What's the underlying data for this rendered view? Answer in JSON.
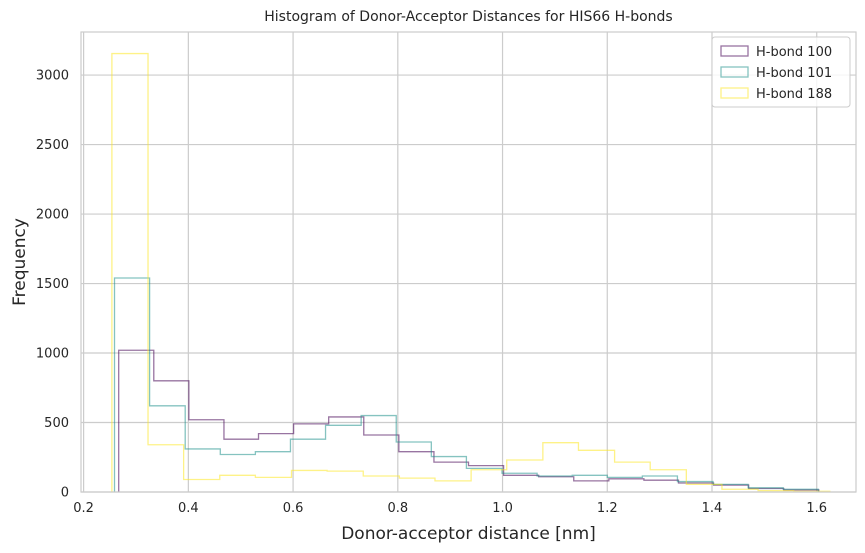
{
  "chart_data": {
    "type": "histogram",
    "title": "Histogram of Donor-Acceptor Distances for HIS66 H-bonds",
    "xlabel": "Donor-acceptor distance [nm]",
    "ylabel": "Frequency",
    "xlim": [
      0.195,
      1.675
    ],
    "ylim": [
      0,
      3310
    ],
    "xticks": [
      0.2,
      0.4,
      0.6,
      0.8,
      1.0,
      1.2,
      1.4,
      1.6
    ],
    "xtick_labels": [
      "0.2",
      "0.4",
      "0.6",
      "0.8",
      "1.0",
      "1.2",
      "1.4",
      "1.6"
    ],
    "yticks": [
      0,
      500,
      1000,
      1500,
      2000,
      2500,
      3000
    ],
    "ytick_labels": [
      "0",
      "500",
      "1000",
      "1500",
      "2000",
      "2500",
      "3000"
    ],
    "grid": true,
    "histtype": "step",
    "legend_position": "top-right",
    "series": [
      {
        "name": "H-bond 100",
        "color": "#440154",
        "edges": [
          0.267,
          0.334,
          0.401,
          0.468,
          0.534,
          0.601,
          0.668,
          0.735,
          0.802,
          0.869,
          0.935,
          1.002,
          1.069,
          1.136,
          1.203,
          1.27,
          1.336,
          1.403,
          1.47,
          1.537,
          1.604
        ],
        "counts": [
          1020,
          800,
          520,
          380,
          420,
          490,
          540,
          410,
          290,
          215,
          190,
          120,
          110,
          80,
          95,
          85,
          65,
          50,
          25,
          15
        ]
      },
      {
        "name": "H-bond 101",
        "color": "#21918c",
        "edges": [
          0.259,
          0.326,
          0.394,
          0.461,
          0.528,
          0.595,
          0.662,
          0.73,
          0.797,
          0.864,
          0.931,
          0.999,
          1.066,
          1.133,
          1.2,
          1.267,
          1.334,
          1.402,
          1.469,
          1.536,
          1.603
        ],
        "counts": [
          1540,
          620,
          310,
          270,
          290,
          380,
          480,
          550,
          360,
          255,
          170,
          135,
          115,
          120,
          105,
          115,
          75,
          55,
          30,
          20
        ]
      },
      {
        "name": "H-bond 188",
        "color": "#fde725",
        "edges": [
          0.254,
          0.323,
          0.391,
          0.46,
          0.528,
          0.597,
          0.665,
          0.734,
          0.803,
          0.871,
          0.94,
          1.008,
          1.077,
          1.145,
          1.214,
          1.282,
          1.351,
          1.419,
          1.488,
          1.556,
          1.625
        ],
        "counts": [
          3155,
          340,
          90,
          120,
          105,
          155,
          150,
          115,
          100,
          80,
          160,
          230,
          355,
          300,
          215,
          160,
          55,
          20,
          10,
          5
        ]
      }
    ]
  }
}
